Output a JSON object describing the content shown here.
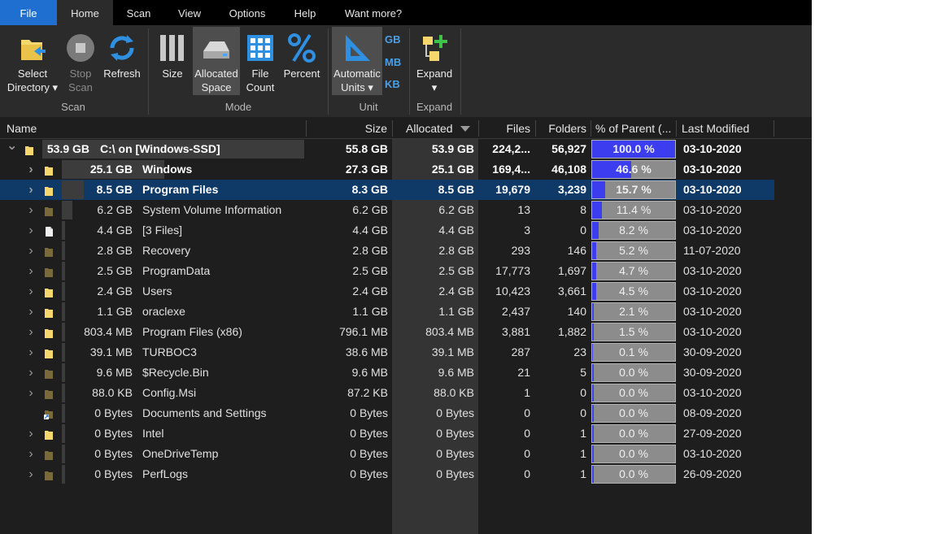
{
  "menu": {
    "file": "File",
    "home": "Home",
    "scan": "Scan",
    "view": "View",
    "options": "Options",
    "help": "Help",
    "want_more": "Want more?"
  },
  "ribbon": {
    "select_directory": "Select\nDirectory ▾",
    "stop_scan": "Stop\nScan",
    "refresh": "Refresh",
    "size": "Size",
    "allocated_space": "Allocated\nSpace",
    "file_count": "File\nCount",
    "percent": "Percent",
    "automatic_units": "Automatic\nUnits ▾",
    "unit_gb": "GB",
    "unit_mb": "MB",
    "unit_kb": "KB",
    "expand": "Expand\n▾",
    "groups": {
      "scan": "Scan",
      "mode": "Mode",
      "unit": "Unit",
      "expand": "Expand"
    }
  },
  "columns": {
    "name": "Name",
    "size": "Size",
    "allocated": "Allocated",
    "files": "Files",
    "folders": "Folders",
    "percent_parent": "% of Parent (...",
    "last_modified": "Last Modified"
  },
  "rows": [
    {
      "level": 0,
      "alloc_label": "53.9 GB",
      "name": "C:\\  on  [Windows-SSD]",
      "size": "55.8 GB",
      "allocated": "53.9 GB",
      "files": "224,2...",
      "folders": "56,927",
      "percent_label": "100.0 %",
      "percent": 100.0,
      "modified": "03-10-2020",
      "expanded": true,
      "bold": true,
      "folder": "yellow"
    },
    {
      "level": 1,
      "alloc_label": "25.1 GB",
      "name": "Windows",
      "size": "27.3 GB",
      "allocated": "25.1 GB",
      "files": "169,4...",
      "folders": "46,108",
      "percent_label": "46.6 %",
      "percent": 46.6,
      "modified": "03-10-2020",
      "bold": true,
      "folder": "yellow"
    },
    {
      "level": 1,
      "alloc_label": "8.5 GB",
      "name": "Program Files",
      "size": "8.3 GB",
      "allocated": "8.5 GB",
      "files": "19,679",
      "folders": "3,239",
      "percent_label": "15.7 %",
      "percent": 15.7,
      "modified": "03-10-2020",
      "bold": true,
      "selected": true,
      "folder": "yellow"
    },
    {
      "level": 1,
      "alloc_label": "6.2 GB",
      "name": "System Volume Information",
      "size": "6.2 GB",
      "allocated": "6.2 GB",
      "files": "13",
      "folders": "8",
      "percent_label": "11.4 %",
      "percent": 11.4,
      "modified": "03-10-2020",
      "folder": "dark"
    },
    {
      "level": 1,
      "alloc_label": "4.4 GB",
      "name": "[3 Files]",
      "size": "4.4 GB",
      "allocated": "4.4 GB",
      "files": "3",
      "folders": "0",
      "percent_label": "8.2 %",
      "percent": 8.2,
      "modified": "03-10-2020",
      "folder": "file"
    },
    {
      "level": 1,
      "alloc_label": "2.8 GB",
      "name": "Recovery",
      "size": "2.8 GB",
      "allocated": "2.8 GB",
      "files": "293",
      "folders": "146",
      "percent_label": "5.2 %",
      "percent": 5.2,
      "modified": "11-07-2020",
      "folder": "dark"
    },
    {
      "level": 1,
      "alloc_label": "2.5 GB",
      "name": "ProgramData",
      "size": "2.5 GB",
      "allocated": "2.5 GB",
      "files": "17,773",
      "folders": "1,697",
      "percent_label": "4.7 %",
      "percent": 4.7,
      "modified": "03-10-2020",
      "folder": "dark"
    },
    {
      "level": 1,
      "alloc_label": "2.4 GB",
      "name": "Users",
      "size": "2.4 GB",
      "allocated": "2.4 GB",
      "files": "10,423",
      "folders": "3,661",
      "percent_label": "4.5 %",
      "percent": 4.5,
      "modified": "03-10-2020",
      "folder": "yellow"
    },
    {
      "level": 1,
      "alloc_label": "1.1 GB",
      "name": "oraclexe",
      "size": "1.1 GB",
      "allocated": "1.1 GB",
      "files": "2,437",
      "folders": "140",
      "percent_label": "2.1 %",
      "percent": 2.1,
      "modified": "03-10-2020",
      "folder": "yellow"
    },
    {
      "level": 1,
      "alloc_label": "803.4 MB",
      "name": "Program Files (x86)",
      "size": "796.1 MB",
      "allocated": "803.4 MB",
      "files": "3,881",
      "folders": "1,882",
      "percent_label": "1.5 %",
      "percent": 1.5,
      "modified": "03-10-2020",
      "folder": "yellow"
    },
    {
      "level": 1,
      "alloc_label": "39.1 MB",
      "name": "TURBOC3",
      "size": "38.6 MB",
      "allocated": "39.1 MB",
      "files": "287",
      "folders": "23",
      "percent_label": "0.1 %",
      "percent": 0.1,
      "modified": "30-09-2020",
      "folder": "yellow"
    },
    {
      "level": 1,
      "alloc_label": "9.6 MB",
      "name": "$Recycle.Bin",
      "size": "9.6 MB",
      "allocated": "9.6 MB",
      "files": "21",
      "folders": "5",
      "percent_label": "0.0 %",
      "percent": 0.0,
      "modified": "30-09-2020",
      "folder": "dark"
    },
    {
      "level": 1,
      "alloc_label": "88.0 KB",
      "name": "Config.Msi",
      "size": "87.2 KB",
      "allocated": "88.0 KB",
      "files": "1",
      "folders": "0",
      "percent_label": "0.0 %",
      "percent": 0.0,
      "modified": "03-10-2020",
      "folder": "dark"
    },
    {
      "level": 1,
      "alloc_label": "0 Bytes",
      "name": "Documents and Settings",
      "size": "0 Bytes",
      "allocated": "0 Bytes",
      "files": "0",
      "folders": "0",
      "percent_label": "0.0 %",
      "percent": 0.0,
      "modified": "08-09-2020",
      "folder": "link",
      "no_chevron": true
    },
    {
      "level": 1,
      "alloc_label": "0 Bytes",
      "name": "Intel",
      "size": "0 Bytes",
      "allocated": "0 Bytes",
      "files": "0",
      "folders": "1",
      "percent_label": "0.0 %",
      "percent": 0.0,
      "modified": "27-09-2020",
      "folder": "yellow"
    },
    {
      "level": 1,
      "alloc_label": "0 Bytes",
      "name": "OneDriveTemp",
      "size": "0 Bytes",
      "allocated": "0 Bytes",
      "files": "0",
      "folders": "1",
      "percent_label": "0.0 %",
      "percent": 0.0,
      "modified": "03-10-2020",
      "folder": "dark"
    },
    {
      "level": 1,
      "alloc_label": "0 Bytes",
      "name": "PerfLogs",
      "size": "0 Bytes",
      "allocated": "0 Bytes",
      "files": "0",
      "folders": "1",
      "percent_label": "0.0 %",
      "percent": 0.0,
      "modified": "26-09-2020",
      "folder": "dark"
    }
  ],
  "colors": {
    "accent": "#1e6fd0",
    "percent_fill": "#3d3df0",
    "selected_row": "#0f3a68",
    "folder_yellow": "#f5d76e",
    "folder_dark": "#7a6a3a"
  }
}
